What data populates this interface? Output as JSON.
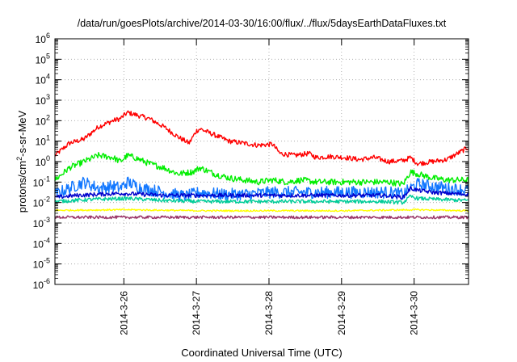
{
  "chart_data": {
    "type": "line",
    "title": "/data/run/goesPlots/archive/2014-03-30/16:00/flux/../flux/5daysEarthDataFluxes.txt",
    "xlabel": "Coordinated Universal Time (UTC)",
    "ylabel_base": "protons/cm",
    "ylabel_sup": "2",
    "ylabel_rest": "-s-sr-MeV",
    "y_scale": "log",
    "ylim_exp": [
      -6,
      6
    ],
    "y_ticks": [
      {
        "base": "10",
        "exp": "6"
      },
      {
        "base": "10",
        "exp": "5"
      },
      {
        "base": "10",
        "exp": "4"
      },
      {
        "base": "10",
        "exp": "3"
      },
      {
        "base": "10",
        "exp": "2"
      },
      {
        "base": "10",
        "exp": "1"
      },
      {
        "base": "10",
        "exp": "0"
      },
      {
        "base": "10",
        "exp": "-1"
      },
      {
        "base": "10",
        "exp": "-2"
      },
      {
        "base": "10",
        "exp": "-3"
      },
      {
        "base": "10",
        "exp": "-4"
      },
      {
        "base": "10",
        "exp": "-5"
      },
      {
        "base": "10",
        "exp": "-6"
      }
    ],
    "xlim_days": [
      0,
      5.7
    ],
    "x_ticks": [
      {
        "label": "2014-3-26",
        "day": 0.95
      },
      {
        "label": "2014-3-27",
        "day": 1.95
      },
      {
        "label": "2014-3-28",
        "day": 2.95
      },
      {
        "label": "2014-3-29",
        "day": 3.95
      },
      {
        "label": "2014-3-30",
        "day": 4.95
      }
    ],
    "grid": true,
    "series": [
      {
        "color": "#ff0000",
        "noise": 0.12,
        "points": [
          [
            0,
            0.3
          ],
          [
            0.2,
            0.9
          ],
          [
            0.4,
            1.1
          ],
          [
            0.6,
            1.7
          ],
          [
            0.8,
            2.0
          ],
          [
            0.9,
            2.1
          ],
          [
            1.0,
            2.4
          ],
          [
            1.1,
            2.3
          ],
          [
            1.3,
            2.1
          ],
          [
            1.5,
            1.7
          ],
          [
            1.7,
            1.2
          ],
          [
            1.8,
            1.0
          ],
          [
            1.85,
            0.9
          ],
          [
            1.95,
            1.5
          ],
          [
            2.0,
            1.6
          ],
          [
            2.2,
            1.3
          ],
          [
            2.4,
            1.0
          ],
          [
            2.6,
            0.9
          ],
          [
            2.8,
            0.8
          ],
          [
            3.0,
            0.85
          ],
          [
            3.1,
            0.4
          ],
          [
            3.3,
            0.3
          ],
          [
            3.5,
            0.4
          ],
          [
            3.6,
            0.2
          ],
          [
            3.8,
            0.25
          ],
          [
            4.0,
            0.2
          ],
          [
            4.2,
            0.1
          ],
          [
            4.4,
            0.2
          ],
          [
            4.6,
            0.0
          ],
          [
            4.8,
            0.05
          ],
          [
            4.9,
            0.2
          ],
          [
            5.0,
            -0.1
          ],
          [
            5.2,
            0.0
          ],
          [
            5.4,
            0.1
          ],
          [
            5.6,
            0.5
          ],
          [
            5.7,
            0.7
          ]
        ]
      },
      {
        "color": "#00ee00",
        "noise": 0.15,
        "points": [
          [
            0,
            -0.9
          ],
          [
            0.2,
            -0.3
          ],
          [
            0.4,
            0.0
          ],
          [
            0.6,
            0.3
          ],
          [
            0.8,
            0.2
          ],
          [
            0.9,
            0.0
          ],
          [
            1.0,
            0.3
          ],
          [
            1.1,
            0.2
          ],
          [
            1.3,
            -0.1
          ],
          [
            1.5,
            -0.3
          ],
          [
            1.7,
            -0.6
          ],
          [
            1.9,
            -0.5
          ],
          [
            2.0,
            -0.3
          ],
          [
            2.2,
            -0.6
          ],
          [
            2.4,
            -0.8
          ],
          [
            2.6,
            -0.9
          ],
          [
            2.8,
            -1.0
          ],
          [
            3.0,
            -0.9
          ],
          [
            3.2,
            -1.0
          ],
          [
            3.4,
            -0.9
          ],
          [
            3.6,
            -1.0
          ],
          [
            3.8,
            -1.0
          ],
          [
            4.0,
            -1.0
          ],
          [
            4.2,
            -1.0
          ],
          [
            4.4,
            -1.0
          ],
          [
            4.6,
            -1.0
          ],
          [
            4.8,
            -1.1
          ],
          [
            4.9,
            -0.5
          ],
          [
            5.0,
            -0.6
          ],
          [
            5.2,
            -0.8
          ],
          [
            5.4,
            -0.9
          ],
          [
            5.7,
            -0.9
          ]
        ]
      },
      {
        "color": "#1177ff",
        "noise": 0.3,
        "points": [
          [
            0,
            -1.6
          ],
          [
            0.2,
            -1.3
          ],
          [
            0.4,
            -1.0
          ],
          [
            0.6,
            -1.3
          ],
          [
            0.8,
            -1.2
          ],
          [
            0.9,
            -1.3
          ],
          [
            1.0,
            -1.0
          ],
          [
            1.2,
            -1.3
          ],
          [
            1.5,
            -1.5
          ],
          [
            1.8,
            -1.7
          ],
          [
            2.0,
            -1.5
          ],
          [
            2.3,
            -1.6
          ],
          [
            2.6,
            -1.6
          ],
          [
            3.0,
            -1.5
          ],
          [
            3.3,
            -1.5
          ],
          [
            3.6,
            -1.5
          ],
          [
            4.0,
            -1.5
          ],
          [
            4.3,
            -1.5
          ],
          [
            4.6,
            -1.5
          ],
          [
            4.8,
            -1.6
          ],
          [
            4.9,
            -1.3
          ],
          [
            5.0,
            -1.1
          ],
          [
            5.2,
            -1.2
          ],
          [
            5.4,
            -1.3
          ],
          [
            5.7,
            -1.4
          ]
        ]
      },
      {
        "color": "#0000cc",
        "noise": 0.1,
        "points": [
          [
            0,
            -1.75
          ],
          [
            0.3,
            -1.65
          ],
          [
            0.6,
            -1.6
          ],
          [
            0.9,
            -1.55
          ],
          [
            1.2,
            -1.6
          ],
          [
            1.5,
            -1.65
          ],
          [
            1.8,
            -1.65
          ],
          [
            2.1,
            -1.65
          ],
          [
            2.4,
            -1.65
          ],
          [
            2.7,
            -1.65
          ],
          [
            3.0,
            -1.65
          ],
          [
            3.3,
            -1.65
          ],
          [
            3.6,
            -1.65
          ],
          [
            3.9,
            -1.65
          ],
          [
            4.2,
            -1.65
          ],
          [
            4.5,
            -1.65
          ],
          [
            4.7,
            -1.7
          ],
          [
            4.8,
            -1.75
          ],
          [
            4.9,
            -1.3
          ],
          [
            5.0,
            -1.4
          ],
          [
            5.2,
            -1.5
          ],
          [
            5.4,
            -1.55
          ],
          [
            5.7,
            -1.6
          ]
        ]
      },
      {
        "color": "#00cc99",
        "noise": 0.09,
        "points": [
          [
            0,
            -1.95
          ],
          [
            0.5,
            -1.85
          ],
          [
            1.0,
            -1.8
          ],
          [
            1.5,
            -1.9
          ],
          [
            2.0,
            -1.95
          ],
          [
            2.5,
            -1.95
          ],
          [
            3.0,
            -1.95
          ],
          [
            3.5,
            -1.95
          ],
          [
            4.0,
            -1.95
          ],
          [
            4.5,
            -1.95
          ],
          [
            4.8,
            -2.0
          ],
          [
            4.9,
            -1.7
          ],
          [
            5.0,
            -1.8
          ],
          [
            5.3,
            -1.85
          ],
          [
            5.7,
            -1.9
          ]
        ]
      },
      {
        "color": "#ffff00",
        "noise": 0.04,
        "points": [
          [
            0,
            -2.38
          ],
          [
            1.0,
            -2.35
          ],
          [
            2.0,
            -2.4
          ],
          [
            3.0,
            -2.4
          ],
          [
            4.0,
            -2.4
          ],
          [
            5.0,
            -2.35
          ],
          [
            5.7,
            -2.4
          ]
        ]
      },
      {
        "color": "#993366",
        "noise": 0.07,
        "points": [
          [
            0,
            -2.72
          ],
          [
            1.0,
            -2.72
          ],
          [
            2.0,
            -2.72
          ],
          [
            3.0,
            -2.72
          ],
          [
            4.0,
            -2.72
          ],
          [
            5.0,
            -2.72
          ],
          [
            5.7,
            -2.72
          ]
        ]
      }
    ]
  }
}
